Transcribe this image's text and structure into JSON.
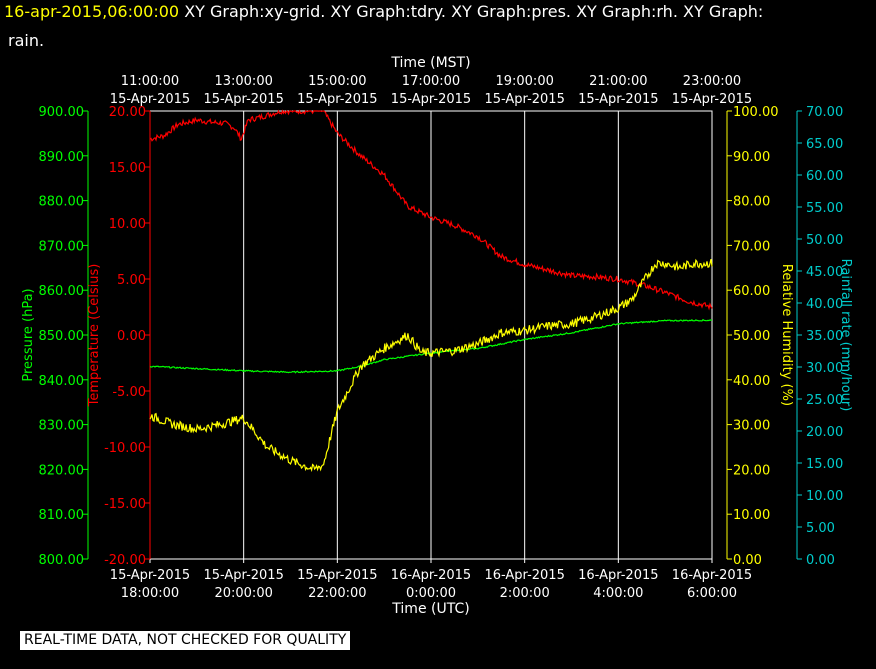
{
  "header": {
    "timestamp": "16-apr-2015,06:00:00",
    "graphs_line1": "XY Graph:xy-grid.  XY Graph:tdry.  XY Graph:pres.  XY Graph:rh.  XY Graph:",
    "graphs_line2": "rain."
  },
  "footer": {
    "note": "REAL-TIME DATA, NOT CHECKED FOR QUALITY"
  },
  "colors": {
    "background": "#000000",
    "grid": "#ffffff",
    "temperature": "#ff0000",
    "pressure": "#00ff00",
    "humidity": "#ffff00",
    "rain": "#00cccc"
  },
  "chart_data": {
    "type": "line",
    "top_axis": {
      "title": "Time (MST)",
      "ticks": [
        {
          "time": "11:00:00",
          "date": "15-Apr-2015"
        },
        {
          "time": "13:00:00",
          "date": "15-Apr-2015"
        },
        {
          "time": "15:00:00",
          "date": "15-Apr-2015"
        },
        {
          "time": "17:00:00",
          "date": "15-Apr-2015"
        },
        {
          "time": "19:00:00",
          "date": "15-Apr-2015"
        },
        {
          "time": "21:00:00",
          "date": "15-Apr-2015"
        },
        {
          "time": "23:00:00",
          "date": "15-Apr-2015"
        }
      ]
    },
    "bottom_axis": {
      "title": "Time (UTC)",
      "ticks": [
        {
          "date": "15-Apr-2015",
          "time": "18:00:00"
        },
        {
          "date": "15-Apr-2015",
          "time": "20:00:00"
        },
        {
          "date": "15-Apr-2015",
          "time": "22:00:00"
        },
        {
          "date": "16-Apr-2015",
          "time": "0:00:00"
        },
        {
          "date": "16-Apr-2015",
          "time": "2:00:00"
        },
        {
          "date": "16-Apr-2015",
          "time": "4:00:00"
        },
        {
          "date": "16-Apr-2015",
          "time": "6:00:00"
        }
      ],
      "range_utc": [
        "2015-04-15 18:00",
        "2015-04-16 06:00"
      ]
    },
    "axes": {
      "pressure": {
        "label": "Pressure (hPa)",
        "ticks": [
          "900.00",
          "890.00",
          "880.00",
          "870.00",
          "860.00",
          "850.00",
          "840.00",
          "830.00",
          "820.00",
          "810.00",
          "800.00"
        ],
        "ylim": [
          800,
          900
        ]
      },
      "temperature": {
        "label": "Temperature (Celsius)",
        "ticks": [
          "20.00",
          "15.00",
          "10.00",
          "5.00",
          "0.00",
          "-5.00",
          "-10.00",
          "-15.00",
          "-20.00"
        ],
        "ylim": [
          -20,
          20
        ]
      },
      "humidity": {
        "label": "Relative Humidity (%)",
        "ticks": [
          "100.00",
          "90.00",
          "80.00",
          "70.00",
          "60.00",
          "50.00",
          "40.00",
          "30.00",
          "20.00",
          "10.00",
          "0.00"
        ],
        "ylim": [
          0,
          100
        ]
      },
      "rain": {
        "label": "Rainfall rate (mm/hour)",
        "ticks": [
          "70.00",
          "65.00",
          "60.00",
          "55.00",
          "50.00",
          "45.00",
          "40.00",
          "35.00",
          "30.00",
          "25.00",
          "20.00",
          "15.00",
          "10.00",
          "5.00",
          "0.00"
        ],
        "ylim": [
          0,
          70
        ]
      }
    },
    "grid": true,
    "series": [
      {
        "key": "temperature",
        "x": [
          18.0,
          18.3,
          18.6,
          19.0,
          19.3,
          19.6,
          19.8,
          19.95,
          20.1,
          20.4,
          20.8,
          21.0,
          21.3,
          21.7,
          22.0,
          22.5,
          23.0,
          23.5,
          24.0,
          24.5,
          25.0,
          25.5,
          26.0,
          26.5,
          27.0,
          27.5,
          28.0,
          28.5,
          29.0,
          29.5,
          30.0
        ],
        "values": [
          17.5,
          17.8,
          18.8,
          19.2,
          19.0,
          18.9,
          18.5,
          17.5,
          19.2,
          19.5,
          20.0,
          20.0,
          20.0,
          20.0,
          18.0,
          16.0,
          14.3,
          11.5,
          10.5,
          9.8,
          8.8,
          7.0,
          6.3,
          5.8,
          5.3,
          5.2,
          5.0,
          4.5,
          3.8,
          3.0,
          2.5
        ],
        "noise": 0.25
      },
      {
        "key": "pressure",
        "x": [
          18.0,
          19.0,
          20.0,
          21.0,
          22.0,
          22.5,
          23.0,
          24.0,
          24.5,
          25.0,
          26.0,
          27.0,
          28.0,
          29.0,
          30.0
        ],
        "values": [
          843.0,
          842.5,
          842.0,
          841.7,
          842.0,
          843.0,
          844.5,
          846.0,
          846.5,
          847.0,
          849.0,
          850.5,
          852.5,
          853.2,
          853.3
        ],
        "noise": 0.15
      },
      {
        "key": "humidity",
        "x": [
          18.0,
          18.5,
          19.0,
          19.5,
          20.0,
          20.5,
          21.0,
          21.5,
          21.7,
          22.0,
          22.5,
          23.0,
          23.5,
          23.8,
          24.0,
          24.5,
          25.0,
          25.5,
          26.0,
          26.5,
          27.0,
          27.5,
          28.0,
          28.3,
          28.6,
          28.8,
          29.0,
          29.3,
          29.6,
          30.0
        ],
        "values": [
          32.0,
          30.0,
          29.0,
          30.0,
          31.5,
          25.0,
          22.0,
          20.0,
          21.0,
          33.0,
          43.0,
          47.0,
          50.0,
          46.0,
          46.0,
          46.5,
          48.0,
          50.5,
          51.0,
          52.0,
          52.5,
          54.0,
          56.0,
          58.0,
          63.0,
          66.0,
          66.0,
          65.0,
          66.0,
          66.0
        ],
        "noise": 1.0
      },
      {
        "key": "rain",
        "x": [],
        "values": []
      }
    ]
  }
}
